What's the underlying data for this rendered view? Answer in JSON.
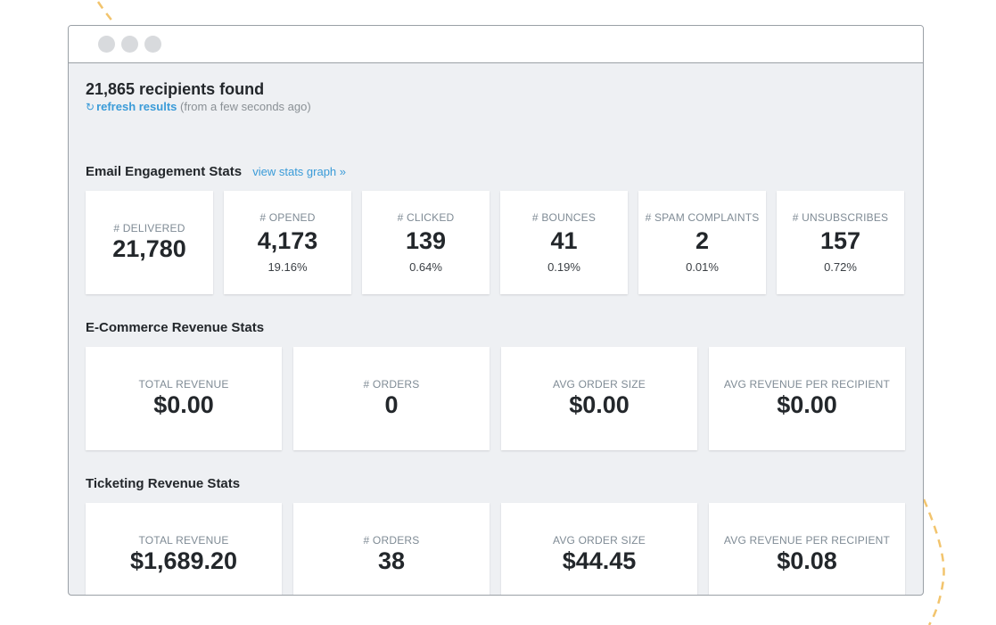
{
  "summary": {
    "recipients_found": "21,865 recipients found",
    "refresh_label": "refresh results",
    "refresh_time": "(from a few seconds ago)"
  },
  "email_engagement": {
    "title": "Email Engagement Stats",
    "link": "view stats graph »",
    "stats": [
      {
        "label": "# DELIVERED",
        "value": "21,780",
        "pct": ""
      },
      {
        "label": "# OPENED",
        "value": "4,173",
        "pct": "19.16%"
      },
      {
        "label": "# CLICKED",
        "value": "139",
        "pct": "0.64%"
      },
      {
        "label": "# BOUNCES",
        "value": "41",
        "pct": "0.19%"
      },
      {
        "label": "# SPAM COMPLAINTS",
        "value": "2",
        "pct": "0.01%"
      },
      {
        "label": "# UNSUBSCRIBES",
        "value": "157",
        "pct": "0.72%"
      }
    ]
  },
  "ecommerce": {
    "title": "E-Commerce Revenue Stats",
    "stats": [
      {
        "label": "TOTAL REVENUE",
        "value": "$0.00"
      },
      {
        "label": "# ORDERS",
        "value": "0"
      },
      {
        "label": "AVG ORDER SIZE",
        "value": "$0.00"
      },
      {
        "label": "AVG REVENUE PER RECIPIENT",
        "value": "$0.00"
      }
    ]
  },
  "ticketing": {
    "title": "Ticketing Revenue Stats",
    "stats": [
      {
        "label": "TOTAL REVENUE",
        "value": "$1,689.20"
      },
      {
        "label": "# ORDERS",
        "value": "38"
      },
      {
        "label": "AVG ORDER SIZE",
        "value": "$44.45"
      },
      {
        "label": "AVG REVENUE PER RECIPIENT",
        "value": "$0.08"
      }
    ]
  },
  "colors": {
    "accent": "#3a9bd8",
    "decoration": "#f2c46d",
    "panel": "#eef0f3"
  },
  "icons": {
    "refresh": "refresh-icon"
  }
}
